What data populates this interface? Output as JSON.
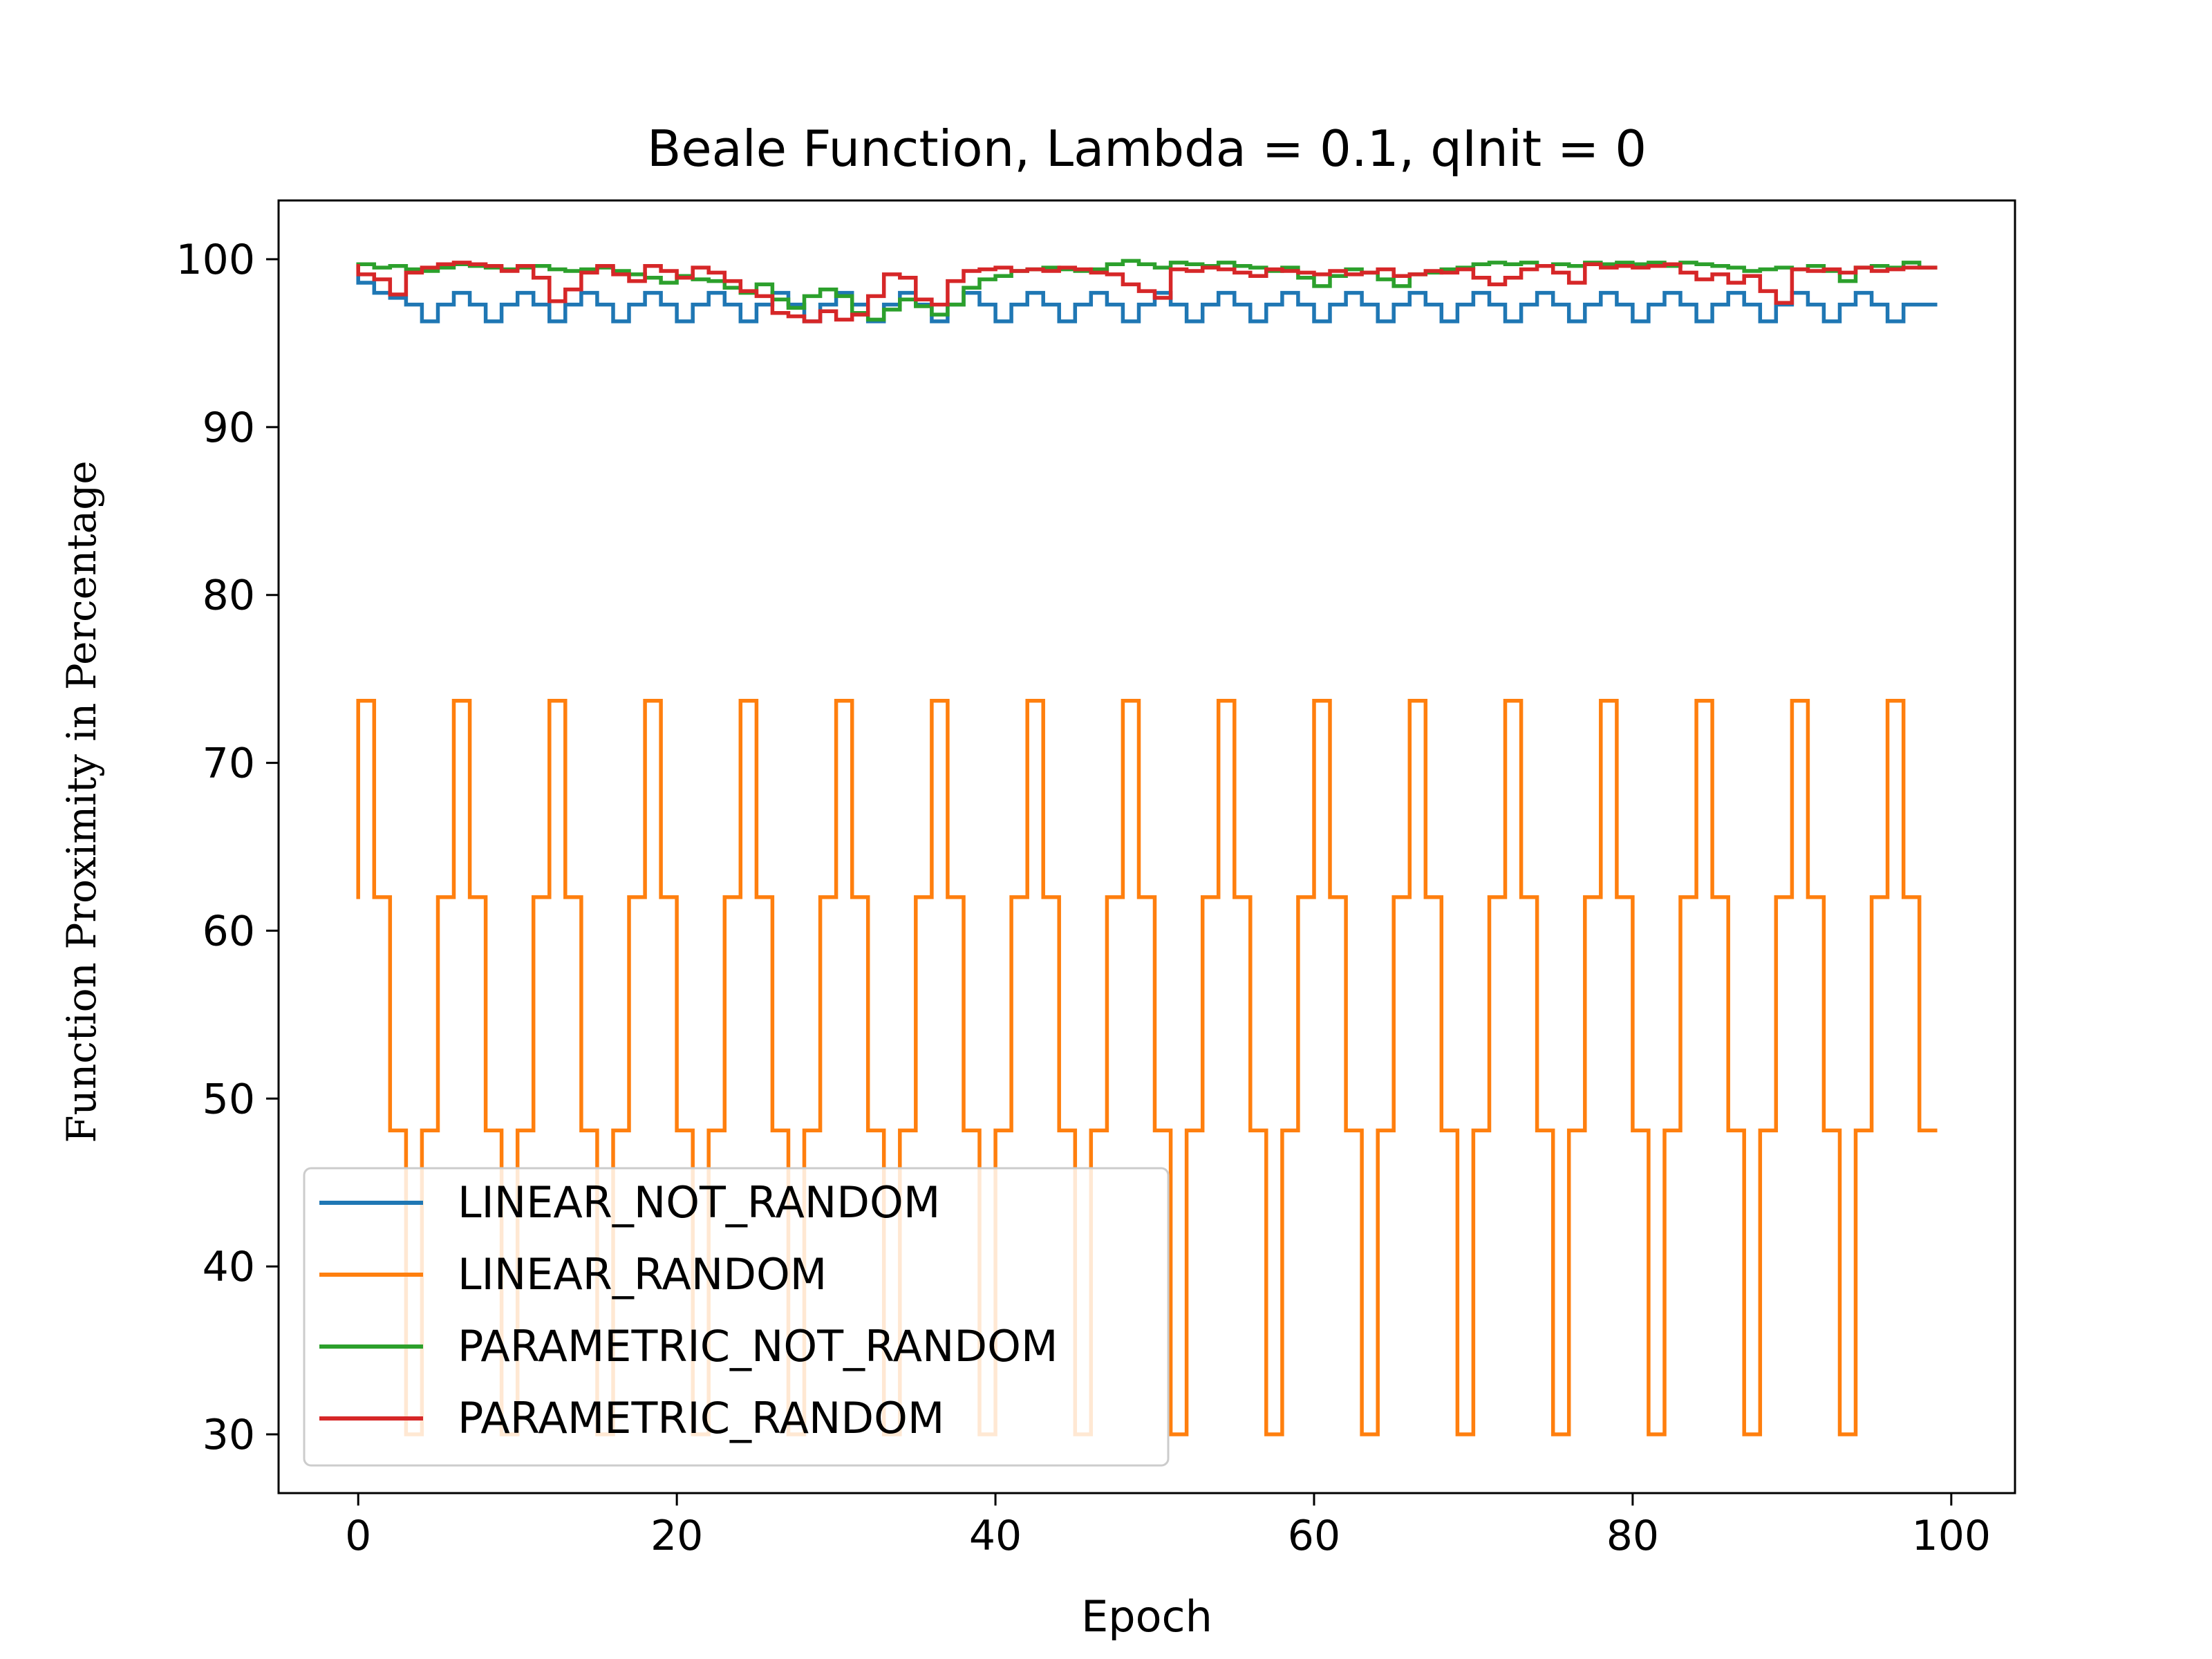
{
  "chart_data": {
    "type": "line",
    "title": "Beale Function, Lambda = 0.1, qInit = 0",
    "xlabel": "Epoch",
    "ylabel": "Function Proximity in Percentage",
    "xlim": [
      -5,
      104
    ],
    "ylim": [
      26.5,
      103.5
    ],
    "xticks": [
      0,
      20,
      40,
      60,
      80,
      100
    ],
    "yticks": [
      30,
      40,
      50,
      60,
      70,
      80,
      90,
      100
    ],
    "grid": false,
    "legend_position": "lower-left",
    "x": [
      0,
      1,
      2,
      3,
      4,
      5,
      6,
      7,
      8,
      9,
      10,
      11,
      12,
      13,
      14,
      15,
      16,
      17,
      18,
      19,
      20,
      21,
      22,
      23,
      24,
      25,
      26,
      27,
      28,
      29,
      30,
      31,
      32,
      33,
      34,
      35,
      36,
      37,
      38,
      39,
      40,
      41,
      42,
      43,
      44,
      45,
      46,
      47,
      48,
      49,
      50,
      51,
      52,
      53,
      54,
      55,
      56,
      57,
      58,
      59,
      60,
      61,
      62,
      63,
      64,
      65,
      66,
      67,
      68,
      69,
      70,
      71,
      72,
      73,
      74,
      75,
      76,
      77,
      78,
      79,
      80,
      81,
      82,
      83,
      84,
      85,
      86,
      87,
      88,
      89,
      90,
      91,
      92,
      93,
      94,
      95,
      96,
      97,
      98,
      99
    ],
    "series": [
      {
        "name": "LINEAR_NOT_RANDOM",
        "color": "#1f77b4",
        "values": [
          98.9,
          98.6,
          98.0,
          97.7,
          97.3,
          96.3,
          97.3,
          98.0,
          97.3,
          96.3,
          97.3,
          98.0,
          97.3,
          96.3,
          97.3,
          98.0,
          97.3,
          96.3,
          97.3,
          98.0,
          97.3,
          96.3,
          97.3,
          98.0,
          97.3,
          96.3,
          97.3,
          98.0,
          97.3,
          96.3,
          97.3,
          98.0,
          97.3,
          96.3,
          97.3,
          98.0,
          97.3,
          96.3,
          97.3,
          98.0,
          97.3,
          96.3,
          97.3,
          98.0,
          97.3,
          96.3,
          97.3,
          98.0,
          97.3,
          96.3,
          97.3,
          98.0,
          97.3,
          96.3,
          97.3,
          98.0,
          97.3,
          96.3,
          97.3,
          98.0,
          97.3,
          96.3,
          97.3,
          98.0,
          97.3,
          96.3,
          97.3,
          98.0,
          97.3,
          96.3,
          97.3,
          98.0,
          97.3,
          96.3,
          97.3,
          98.0,
          97.3,
          96.3,
          97.3,
          98.0,
          97.3,
          96.3,
          97.3,
          98.0,
          97.3,
          96.3,
          97.3,
          98.0,
          97.3,
          96.3,
          97.3,
          98.0,
          97.3,
          96.3,
          97.3,
          98.0,
          97.3,
          96.3,
          97.3,
          97.3
        ]
      },
      {
        "name": "LINEAR_RANDOM",
        "color": "#ff7f0e",
        "values": [
          62.0,
          73.7,
          62.0,
          48.1,
          30.0,
          48.1,
          62.0,
          73.7,
          62.0,
          48.1,
          30.0,
          48.1,
          62.0,
          73.7,
          62.0,
          48.1,
          30.0,
          48.1,
          62.0,
          73.7,
          62.0,
          48.1,
          30.0,
          48.1,
          62.0,
          73.7,
          62.0,
          48.1,
          30.0,
          48.1,
          62.0,
          73.7,
          62.0,
          48.1,
          30.0,
          48.1,
          62.0,
          73.7,
          62.0,
          48.1,
          30.0,
          48.1,
          62.0,
          73.7,
          62.0,
          48.1,
          30.0,
          48.1,
          62.0,
          73.7,
          62.0,
          48.1,
          30.0,
          48.1,
          62.0,
          73.7,
          62.0,
          48.1,
          30.0,
          48.1,
          62.0,
          73.7,
          62.0,
          48.1,
          30.0,
          48.1,
          62.0,
          73.7,
          62.0,
          48.1,
          30.0,
          48.1,
          62.0,
          73.7,
          62.0,
          48.1,
          30.0,
          48.1,
          62.0,
          73.7,
          62.0,
          48.1,
          30.0,
          48.1,
          62.0,
          73.7,
          62.0,
          48.1,
          30.0,
          48.1,
          62.0,
          73.7,
          62.0,
          48.1,
          30.0,
          48.1,
          62.0,
          73.7,
          62.0,
          48.1
        ]
      },
      {
        "name": "PARAMETRIC_NOT_RANDOM",
        "color": "#2ca02c",
        "values": [
          99.5,
          99.7,
          99.5,
          99.6,
          99.4,
          99.3,
          99.5,
          99.7,
          99.6,
          99.5,
          99.4,
          99.5,
          99.6,
          99.4,
          99.3,
          99.4,
          99.5,
          99.3,
          99.1,
          98.9,
          98.6,
          99.0,
          98.8,
          98.7,
          98.3,
          98.0,
          98.5,
          97.6,
          97.1,
          97.8,
          98.2,
          97.8,
          96.8,
          96.4,
          97.0,
          97.6,
          97.2,
          96.7,
          97.3,
          98.3,
          98.8,
          99.0,
          99.3,
          99.4,
          99.5,
          99.4,
          99.3,
          99.4,
          99.7,
          99.9,
          99.7,
          99.5,
          99.8,
          99.7,
          99.6,
          99.8,
          99.6,
          99.5,
          99.3,
          99.5,
          98.9,
          98.4,
          99.0,
          99.4,
          99.2,
          98.8,
          98.4,
          99.1,
          99.2,
          99.4,
          99.5,
          99.7,
          99.8,
          99.7,
          99.8,
          99.6,
          99.7,
          99.6,
          99.8,
          99.7,
          99.8,
          99.7,
          99.8,
          99.6,
          99.8,
          99.7,
          99.6,
          99.5,
          99.3,
          99.4,
          99.5,
          99.4,
          99.6,
          99.3,
          98.7,
          99.5,
          99.6,
          99.5,
          99.8,
          99.5
        ]
      },
      {
        "name": "PARAMETRIC_RANDOM",
        "color": "#d62728",
        "values": [
          99.6,
          99.1,
          98.8,
          97.9,
          99.2,
          99.5,
          99.7,
          99.8,
          99.7,
          99.6,
          99.3,
          99.6,
          98.9,
          97.5,
          98.2,
          99.2,
          99.6,
          99.1,
          98.7,
          99.6,
          99.3,
          98.9,
          99.5,
          99.2,
          98.7,
          98.1,
          97.8,
          96.8,
          96.6,
          96.3,
          96.9,
          96.4,
          96.7,
          97.8,
          99.1,
          98.9,
          97.6,
          97.3,
          98.7,
          99.3,
          99.4,
          99.5,
          99.3,
          99.4,
          99.3,
          99.5,
          99.4,
          99.2,
          99.1,
          98.5,
          98.1,
          97.7,
          99.4,
          99.3,
          99.5,
          99.4,
          99.2,
          99.0,
          99.4,
          99.3,
          99.2,
          99.1,
          99.3,
          99.1,
          99.2,
          99.4,
          99.0,
          99.1,
          99.3,
          99.2,
          99.4,
          98.9,
          98.5,
          98.9,
          99.4,
          99.6,
          99.2,
          98.6,
          99.7,
          99.5,
          99.6,
          99.5,
          99.6,
          99.7,
          99.2,
          98.8,
          99.1,
          98.6,
          99.0,
          98.1,
          97.4,
          99.4,
          99.3,
          99.4,
          99.2,
          99.5,
          99.3,
          99.4,
          99.5,
          99.5
        ]
      }
    ]
  }
}
